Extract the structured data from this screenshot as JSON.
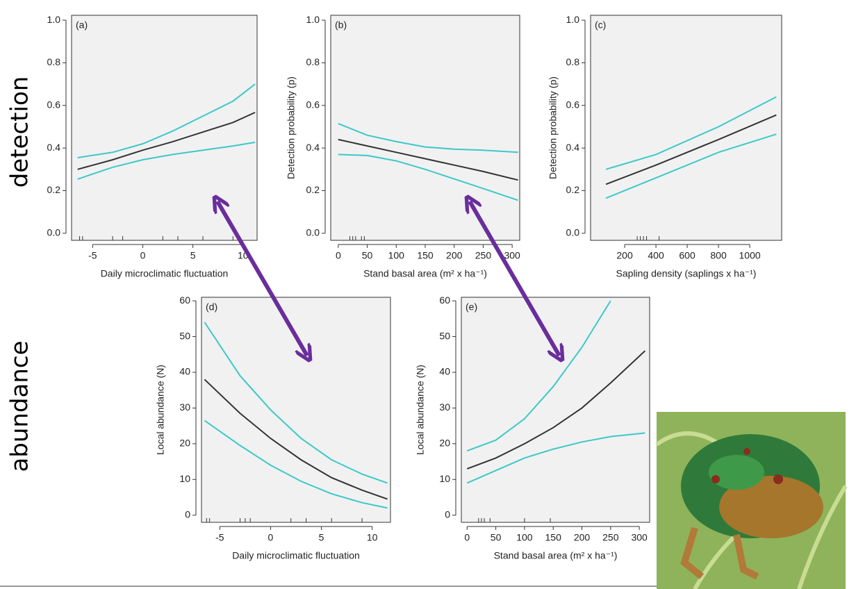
{
  "labels": {
    "row1": "detection",
    "row2": "abundance"
  },
  "chart_data": [
    {
      "type": "line",
      "panel_label": "(a)",
      "x_label": "Daily microclimatic fluctuation",
      "x": [
        -6.5,
        -3,
        0,
        3,
        6,
        9,
        11.2
      ],
      "series": [
        {
          "color": "#3cc8c8",
          "values": [
            0.355,
            0.38,
            0.42,
            0.48,
            0.55,
            0.62,
            0.7
          ]
        },
        {
          "color": "#333333",
          "values": [
            0.3,
            0.345,
            0.39,
            0.43,
            0.475,
            0.52,
            0.567
          ]
        },
        {
          "color": "#3cc8c8",
          "values": [
            0.254,
            0.31,
            0.345,
            0.37,
            0.39,
            0.41,
            0.427
          ]
        }
      ],
      "rug": [
        -6.3,
        -6.0,
        -3.0,
        -2.0,
        2.0,
        3.5,
        6.0,
        9.0
      ],
      "xlim": [
        -7.1,
        11.4
      ],
      "xticks": [
        -5,
        0,
        5,
        10
      ],
      "ylim": [
        -0.033,
        1.023
      ],
      "yticks": [
        {
          "value": 0,
          "label": "0.0"
        },
        0.2,
        0.4,
        0.6,
        0.8,
        {
          "value": 1,
          "label": "1.0"
        }
      ]
    },
    {
      "type": "line",
      "panel_label": "(b)",
      "x_label": "Stand basal area (m² x ha⁻¹)",
      "y_label": "Detection probability (p)",
      "x": [
        0,
        50,
        100,
        150,
        200,
        250,
        310
      ],
      "series": [
        {
          "color": "#3cc8c8",
          "values": [
            0.515,
            0.46,
            0.43,
            0.405,
            0.395,
            0.39,
            0.38
          ]
        },
        {
          "color": "#333333",
          "values": [
            0.44,
            0.41,
            0.38,
            0.35,
            0.32,
            0.29,
            0.25
          ]
        },
        {
          "color": "#3cc8c8",
          "values": [
            0.37,
            0.365,
            0.34,
            0.3,
            0.255,
            0.21,
            0.155
          ]
        }
      ],
      "rug": [
        20,
        25,
        30,
        40,
        45
      ],
      "xlim": [
        -13,
        313
      ],
      "xticks": [
        0,
        50,
        100,
        150,
        200,
        250,
        300
      ],
      "ylim": [
        -0.033,
        1.023
      ],
      "yticks": [
        {
          "value": 0,
          "label": "0.0"
        },
        0.2,
        0.4,
        0.6,
        0.8,
        {
          "value": 1,
          "label": "1.0"
        }
      ]
    },
    {
      "type": "line",
      "panel_label": "(c)",
      "x_label": "Sapling density (saplings x ha⁻¹)",
      "y_label": "Detection probability (p)",
      "x": [
        80,
        400,
        800,
        1170
      ],
      "series": [
        {
          "color": "#3cc8c8",
          "values": [
            0.3,
            0.37,
            0.5,
            0.64
          ]
        },
        {
          "color": "#333333",
          "values": [
            0.23,
            0.32,
            0.44,
            0.555
          ]
        },
        {
          "color": "#3cc8c8",
          "values": [
            0.165,
            0.26,
            0.38,
            0.465
          ]
        }
      ],
      "rug": [
        280,
        300,
        320,
        340,
        420
      ],
      "xlim": [
        -18,
        1204
      ],
      "xticks": [
        200,
        400,
        600,
        800,
        1000
      ],
      "ylim": [
        -0.033,
        1.023
      ],
      "yticks": [
        {
          "value": 0,
          "label": "0.0"
        },
        0.2,
        0.4,
        0.6,
        0.8,
        {
          "value": 1,
          "label": "1.0"
        }
      ]
    },
    {
      "type": "line",
      "panel_label": "(d)",
      "x_label": "Daily microclimatic fluctuation",
      "y_label": "Local abundance (N)",
      "x": [
        -6.5,
        -3,
        0,
        3,
        6,
        9,
        11.5
      ],
      "series": [
        {
          "color": "#3cc8c8",
          "values": [
            54,
            39,
            29.5,
            21.5,
            15.5,
            11.5,
            9
          ]
        },
        {
          "color": "#333333",
          "values": [
            38,
            28.5,
            21.5,
            15.5,
            10.5,
            7,
            4.5
          ]
        },
        {
          "color": "#3cc8c8",
          "values": [
            26.5,
            19.5,
            14,
            9.5,
            6,
            3.5,
            2
          ]
        }
      ],
      "rug": [
        -6.3,
        -6.0,
        -3.0,
        -2.5,
        -2.0,
        2.0,
        3.5,
        6.0,
        9.0
      ],
      "xlim": [
        -6.8,
        11.8
      ],
      "xticks": [
        -5,
        0,
        5,
        10
      ],
      "ylim": [
        -2,
        61
      ],
      "yticks": [
        0,
        10,
        20,
        30,
        40,
        50,
        60
      ]
    },
    {
      "type": "line",
      "panel_label": "(e)",
      "x_label": "Stand basal area (m² x ha⁻¹)",
      "y_label": "Local abundance (N)",
      "x": [
        0,
        50,
        100,
        150,
        200,
        250,
        310
      ],
      "series": [
        {
          "color": "#3cc8c8",
          "values": [
            18,
            21,
            27,
            36,
            47,
            60,
            null
          ]
        },
        {
          "color": "#333333",
          "values": [
            13,
            16,
            20,
            24.5,
            30,
            37,
            46
          ]
        },
        {
          "color": "#3cc8c8",
          "values": [
            9,
            12.5,
            16,
            18.5,
            20.5,
            22,
            23
          ]
        }
      ],
      "rug": [
        20,
        25,
        30,
        40,
        100,
        145
      ],
      "xlim": [
        -10,
        318
      ],
      "xticks": [
        0,
        50,
        100,
        150,
        200,
        250,
        300
      ],
      "ylim": [
        -2,
        61
      ],
      "yticks": [
        0,
        10,
        20,
        30,
        40,
        50,
        60
      ]
    }
  ]
}
